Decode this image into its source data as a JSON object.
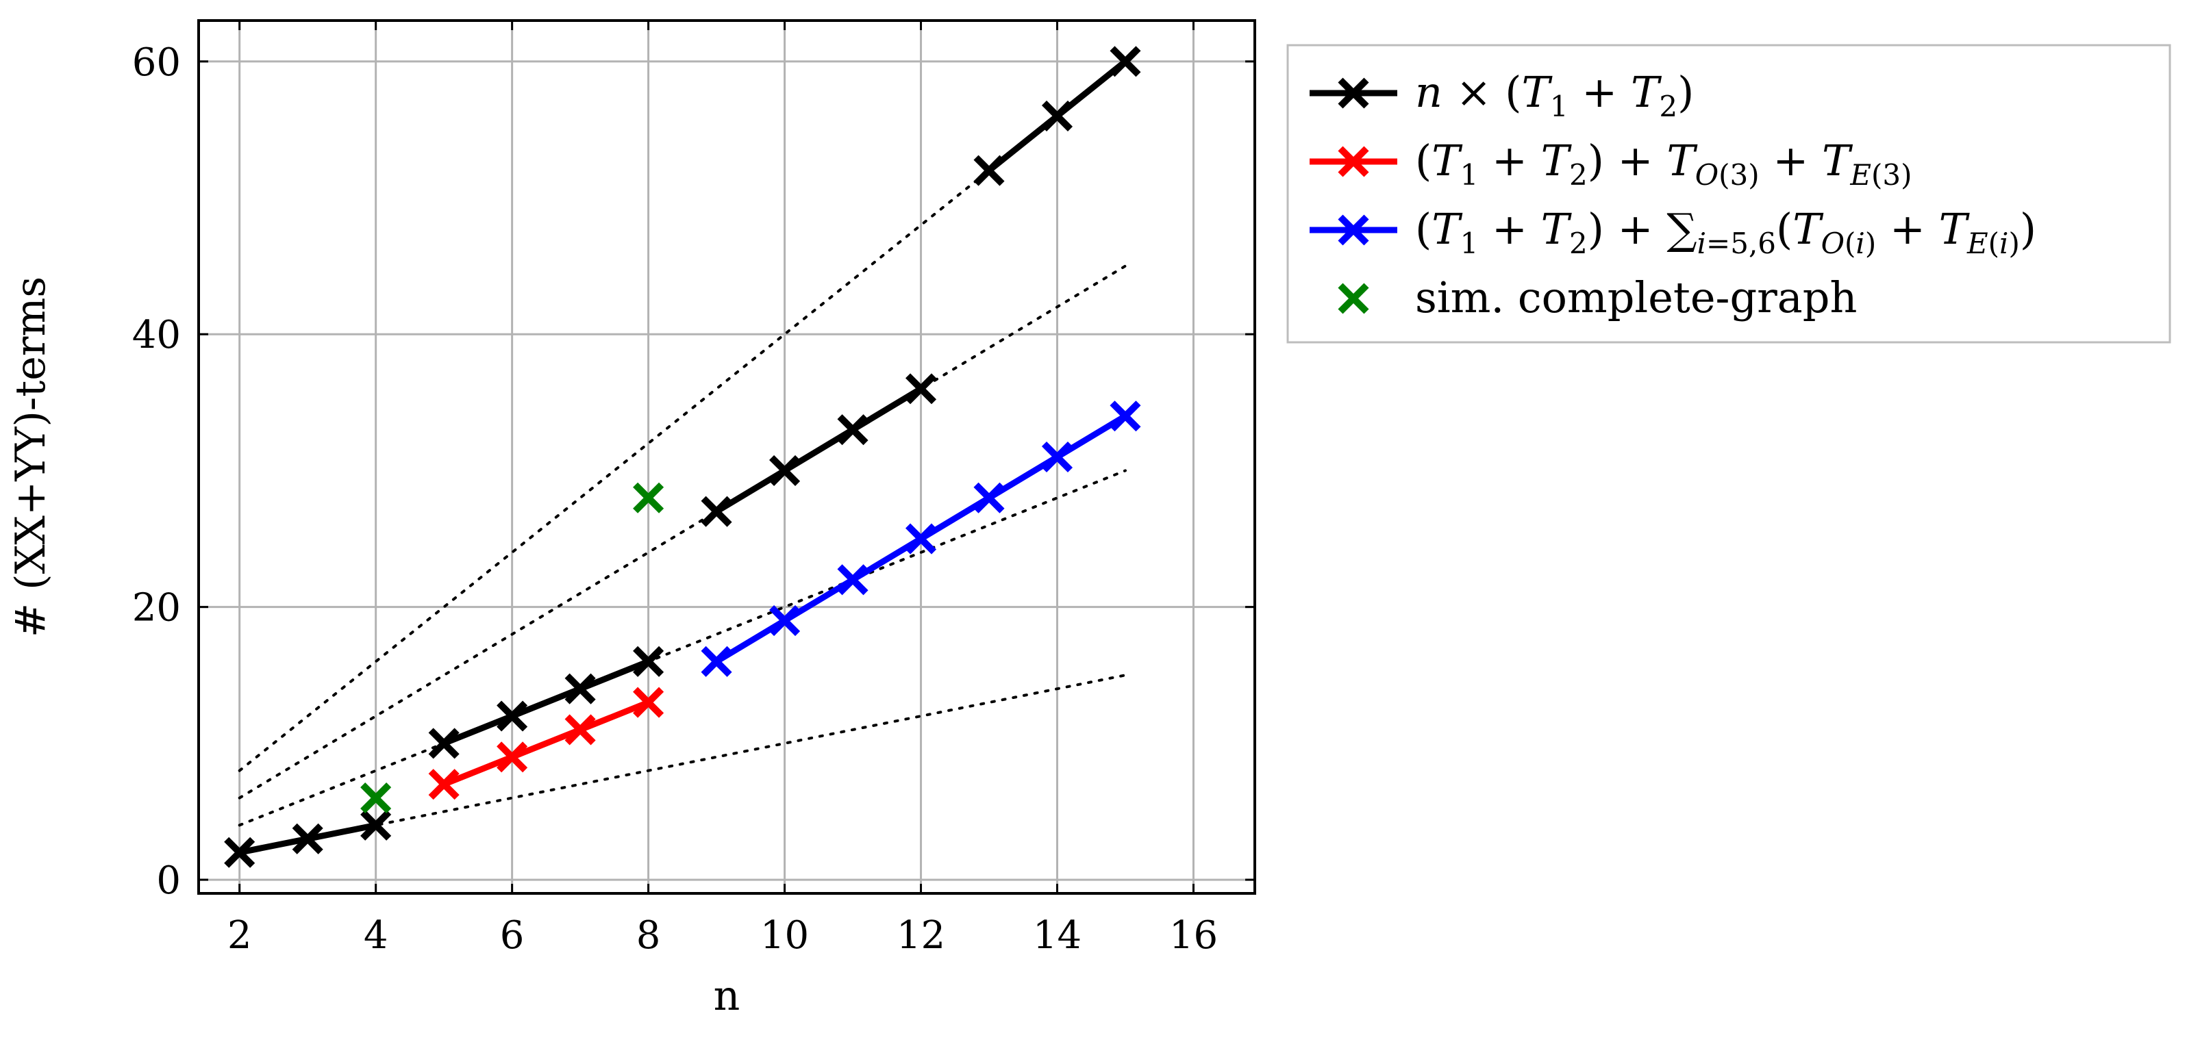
{
  "chart_data": {
    "type": "line",
    "xlabel": "n",
    "ylabel": "# (XX+YY)-terms",
    "xlim": [
      1.4,
      16.9
    ],
    "ylim": [
      -1,
      63
    ],
    "xticks": [
      2,
      4,
      6,
      8,
      10,
      12,
      14,
      16
    ],
    "yticks": [
      0,
      20,
      40,
      60
    ],
    "grid": true,
    "legend_position": "outside-top-right",
    "series": [
      {
        "name": "n × (T1 + T2)",
        "color": "#000000",
        "marker": "x",
        "segments": [
          {
            "x": [
              2,
              3,
              4
            ],
            "y": [
              2,
              3,
              4
            ]
          },
          {
            "x": [
              5,
              6,
              7,
              8
            ],
            "y": [
              10,
              12,
              14,
              16
            ]
          },
          {
            "x": [
              9,
              10,
              11,
              12
            ],
            "y": [
              27,
              30,
              33,
              36
            ]
          },
          {
            "x": [
              13,
              14,
              15
            ],
            "y": [
              52,
              56,
              60
            ]
          }
        ]
      },
      {
        "name": "(T1 + T2) + TO(3) + TE(3)",
        "color": "#ff0000",
        "marker": "x",
        "segments": [
          {
            "x": [
              5,
              6,
              7,
              8
            ],
            "y": [
              7,
              9,
              11,
              13
            ]
          }
        ]
      },
      {
        "name": "(T1 + T2) + ∑i=5,6(TO(i) + TE(i))",
        "color": "#0000ff",
        "marker": "x",
        "segments": [
          {
            "x": [
              9,
              10,
              11,
              12,
              13,
              14,
              15
            ],
            "y": [
              16,
              19,
              22,
              25,
              28,
              31,
              34
            ]
          }
        ]
      },
      {
        "name": "sim. complete-graph",
        "color": "#008000",
        "marker": "x",
        "line": false,
        "segments": [
          {
            "x": [
              4,
              8
            ],
            "y": [
              6,
              28
            ]
          }
        ]
      }
    ],
    "reference_lines": [
      {
        "style": "dotted",
        "color": "#000000",
        "x": [
          2,
          15
        ],
        "y": [
          2,
          15
        ]
      },
      {
        "style": "dotted",
        "color": "#000000",
        "x": [
          2,
          15
        ],
        "y": [
          4,
          30
        ]
      },
      {
        "style": "dotted",
        "color": "#000000",
        "x": [
          2,
          15
        ],
        "y": [
          6,
          45
        ]
      },
      {
        "style": "dotted",
        "color": "#000000",
        "x": [
          2,
          15
        ],
        "y": [
          8,
          60
        ]
      }
    ]
  }
}
